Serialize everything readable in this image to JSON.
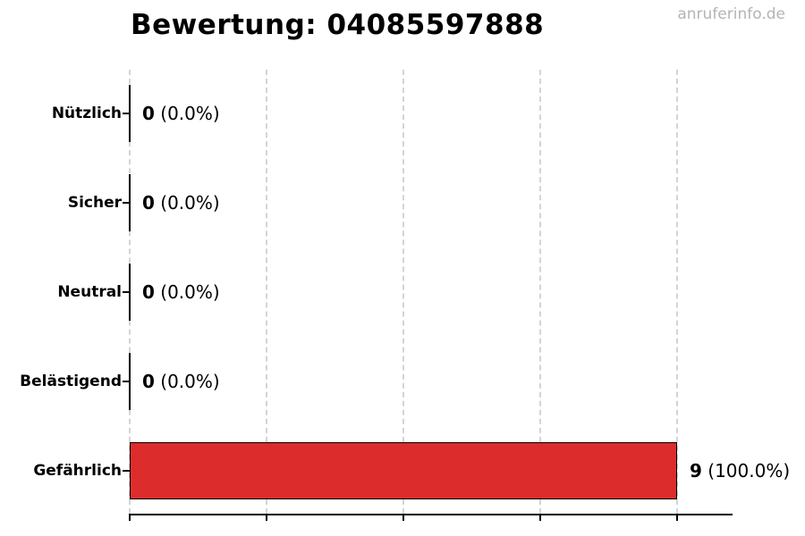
{
  "page": {
    "background": "#ffffff",
    "watermark": "anruferinfo.de",
    "watermark_color": "#b4b4b4"
  },
  "chart_data": {
    "type": "bar",
    "orientation": "horizontal",
    "title": "Bewertung: 04085597888",
    "categories": [
      "Nützlich",
      "Sicher",
      "Neutral",
      "Belästigend",
      "Gefährlich"
    ],
    "values": [
      0,
      0,
      0,
      0,
      9
    ],
    "percent_labels": [
      "0.0%",
      "0.0%",
      "0.0%",
      "0.0%",
      "100.0%"
    ],
    "value_labels": [
      "0 (0.0%)",
      "0 (0.0%)",
      "0 (0.0%)",
      "0 (0.0%)",
      "9 (100.0%)"
    ],
    "total": 9,
    "bar_color": "#dd2c2c",
    "bar_edge_color": "#000000",
    "grid": true,
    "gridline_style": "dashed",
    "gridline_color": "#d4d4d4",
    "legend": "none",
    "x_axis": {
      "min": 0,
      "max_value_at_last_tick": 9,
      "tick_count": 5,
      "tick_labels_visible": false
    }
  }
}
